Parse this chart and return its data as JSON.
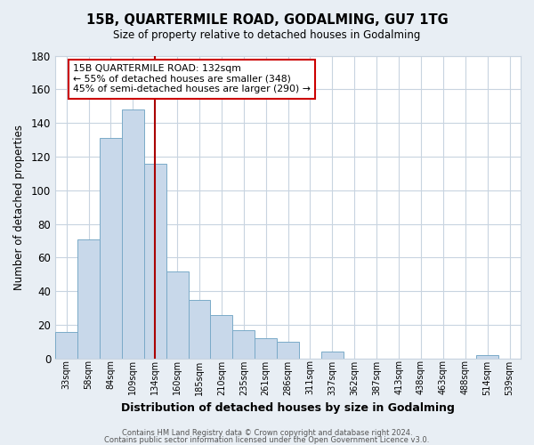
{
  "title": "15B, QUARTERMILE ROAD, GODALMING, GU7 1TG",
  "subtitle": "Size of property relative to detached houses in Godalming",
  "xlabel": "Distribution of detached houses by size in Godalming",
  "ylabel": "Number of detached properties",
  "bar_labels": [
    "33sqm",
    "58sqm",
    "84sqm",
    "109sqm",
    "134sqm",
    "160sqm",
    "185sqm",
    "210sqm",
    "235sqm",
    "261sqm",
    "286sqm",
    "311sqm",
    "337sqm",
    "362sqm",
    "387sqm",
    "413sqm",
    "438sqm",
    "463sqm",
    "488sqm",
    "514sqm",
    "539sqm"
  ],
  "bar_values": [
    16,
    71,
    131,
    148,
    116,
    52,
    35,
    26,
    17,
    12,
    10,
    0,
    4,
    0,
    0,
    0,
    0,
    0,
    0,
    2,
    0
  ],
  "bar_color": "#c8d8ea",
  "bar_edge_color": "#7aaac8",
  "ylim": [
    0,
    180
  ],
  "yticks": [
    0,
    20,
    40,
    60,
    80,
    100,
    120,
    140,
    160,
    180
  ],
  "vline_x_index": 4,
  "vline_color": "#aa0000",
  "annotation_title": "15B QUARTERMILE ROAD: 132sqm",
  "annotation_line1": "← 55% of detached houses are smaller (348)",
  "annotation_line2": "45% of semi-detached houses are larger (290) →",
  "footer_line1": "Contains HM Land Registry data © Crown copyright and database right 2024.",
  "footer_line2": "Contains public sector information licensed under the Open Government Licence v3.0.",
  "background_color": "#e8eef4",
  "plot_background_color": "#ffffff",
  "grid_color": "#c8d4e0"
}
